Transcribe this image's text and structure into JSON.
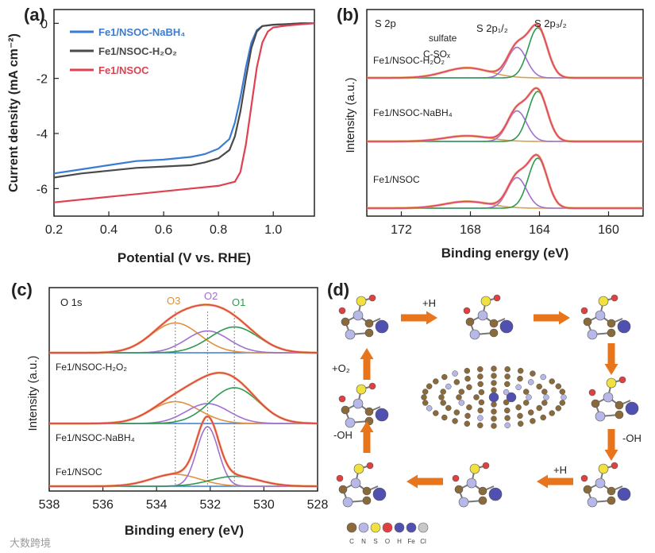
{
  "figure": {
    "watermark": "大数跨境",
    "legend_swatch_labels": [
      "C",
      "N",
      "S",
      "O",
      "H",
      "Fe",
      "Cl"
    ]
  },
  "chart_data": [
    {
      "id": "a",
      "panel_label": "(a)",
      "type": "line",
      "xlabel": "Potential (V vs. RHE)",
      "ylabel": "Current density (mA cm⁻²)",
      "xlim": [
        0.2,
        1.15
      ],
      "ylim": [
        -7.0,
        0.5
      ],
      "xticks": [
        0.2,
        0.4,
        0.6,
        0.8,
        1.0
      ],
      "yticks": [
        0,
        -2,
        -4,
        -6
      ],
      "xtick_labels": [
        "0.2",
        "0.4",
        "0.6",
        "0.8",
        "1.0"
      ],
      "ytick_labels": [
        "0",
        "-2",
        "-4",
        "-6"
      ],
      "legend_position": "top-left",
      "series": [
        {
          "name": "Fe1/NSOC-NaBH4",
          "display": "Fe1/NSOC-NaBH₄",
          "color": "#3a7bd5",
          "x": [
            0.2,
            0.3,
            0.4,
            0.5,
            0.6,
            0.7,
            0.75,
            0.8,
            0.84,
            0.86,
            0.88,
            0.9,
            0.92,
            0.94,
            0.96,
            1.0,
            1.05,
            1.1,
            1.15
          ],
          "y": [
            -5.45,
            -5.3,
            -5.15,
            -5.0,
            -4.95,
            -4.85,
            -4.75,
            -4.55,
            -4.2,
            -3.6,
            -2.7,
            -1.6,
            -0.7,
            -0.25,
            -0.1,
            -0.05,
            -0.03,
            0.0,
            0.0
          ]
        },
        {
          "name": "Fe1/NSOC-H2O2",
          "display": "Fe1/NSOC-H₂O₂",
          "color": "#4a4a4a",
          "x": [
            0.2,
            0.3,
            0.4,
            0.5,
            0.6,
            0.7,
            0.75,
            0.8,
            0.84,
            0.86,
            0.88,
            0.9,
            0.92,
            0.94,
            0.96,
            1.0,
            1.05,
            1.1,
            1.15
          ],
          "y": [
            -5.6,
            -5.45,
            -5.35,
            -5.25,
            -5.2,
            -5.15,
            -5.05,
            -4.9,
            -4.6,
            -4.1,
            -3.2,
            -2.0,
            -0.9,
            -0.3,
            -0.1,
            -0.05,
            -0.03,
            0.0,
            0.0
          ]
        },
        {
          "name": "Fe1/NSOC",
          "display": "Fe1/NSOC",
          "color": "#e04050",
          "x": [
            0.2,
            0.3,
            0.4,
            0.5,
            0.6,
            0.7,
            0.8,
            0.86,
            0.88,
            0.9,
            0.92,
            0.94,
            0.96,
            0.98,
            1.0,
            1.05,
            1.1,
            1.15
          ],
          "y": [
            -6.5,
            -6.4,
            -6.3,
            -6.2,
            -6.1,
            -6.0,
            -5.9,
            -5.75,
            -5.4,
            -4.4,
            -3.0,
            -1.6,
            -0.7,
            -0.3,
            -0.15,
            -0.08,
            -0.04,
            0.0
          ]
        }
      ]
    },
    {
      "id": "b",
      "panel_label": "(b)",
      "type": "line",
      "xlabel": "Binding energy (eV)",
      "ylabel": "Intensity (a.u.)",
      "xlim": [
        174,
        158
      ],
      "x_reversed": true,
      "xticks": [
        172,
        168,
        164,
        160
      ],
      "xtick_labels": [
        "172",
        "168",
        "164",
        "160"
      ],
      "corner_label": "S 2p",
      "annotations": [
        "sulfate",
        "C-SOₓ",
        "S 2p₁/₂",
        "S 2p₃/₂"
      ],
      "peak_centers_eV": {
        "sulfate": 168.2,
        "S2p1/2": 165.3,
        "S2p3/2": 164.1
      },
      "stack": [
        {
          "name": "Fe1/NSOC-H2O2",
          "display": "Fe1/NSOC-H₂O₂",
          "sulfate": 0.18,
          "p12": 0.55,
          "p32": 0.9
        },
        {
          "name": "Fe1/NSOC-NaBH4",
          "display": "Fe1/NSOC-NaBH₄",
          "sulfate": 0.1,
          "p12": 0.55,
          "p32": 0.9
        },
        {
          "name": "Fe1/NSOC",
          "display": "Fe1/NSOC",
          "sulfate": 0.12,
          "p12": 0.55,
          "p32": 0.9
        }
      ],
      "colors": {
        "raw": "#e8a040",
        "envelope": "#e04080",
        "sulfate": "#d9a050",
        "p12": "#a070d0",
        "p32": "#2e9a50"
      }
    },
    {
      "id": "c",
      "panel_label": "(c)",
      "type": "line",
      "xlabel": "Binding enery (eV)",
      "ylabel": "Intensity (a.u.)",
      "xlim": [
        538,
        528
      ],
      "x_reversed": true,
      "xticks": [
        538,
        536,
        534,
        532,
        530,
        528
      ],
      "xtick_labels": [
        "538",
        "536",
        "534",
        "532",
        "530",
        "528"
      ],
      "corner_label": "O 1s",
      "peak_labels": [
        "O3",
        "O2",
        "O1"
      ],
      "peak_centers_eV": {
        "O3": 533.3,
        "O2": 532.1,
        "O1": 531.1
      },
      "stack": [
        {
          "name": "Fe1/NSOC-H2O2",
          "display": "Fe1/NSOC-H₂O₂",
          "O3": 0.75,
          "O2": 0.55,
          "O1": 0.65
        },
        {
          "name": "Fe1/NSOC-NaBH4",
          "display": "Fe1/NSOC-NaBH₄",
          "O3": 0.55,
          "O2": 0.5,
          "O1": 0.9
        },
        {
          "name": "Fe1/NSOC",
          "display": "Fe1/NSOC",
          "O3": 0.3,
          "O2": 1.5,
          "O1": 0.25
        }
      ],
      "colors": {
        "raw": "#e8a040",
        "envelope": "#e04050",
        "O3": "#e09040",
        "O2": "#a070d0",
        "O1": "#2e9a50",
        "baseline": "#3a7bd5"
      }
    },
    {
      "id": "d",
      "panel_label": "(d)",
      "type": "other",
      "description_labels": [
        "+H",
        "+O₂",
        "-OH",
        "-OH",
        "+H"
      ]
    }
  ]
}
